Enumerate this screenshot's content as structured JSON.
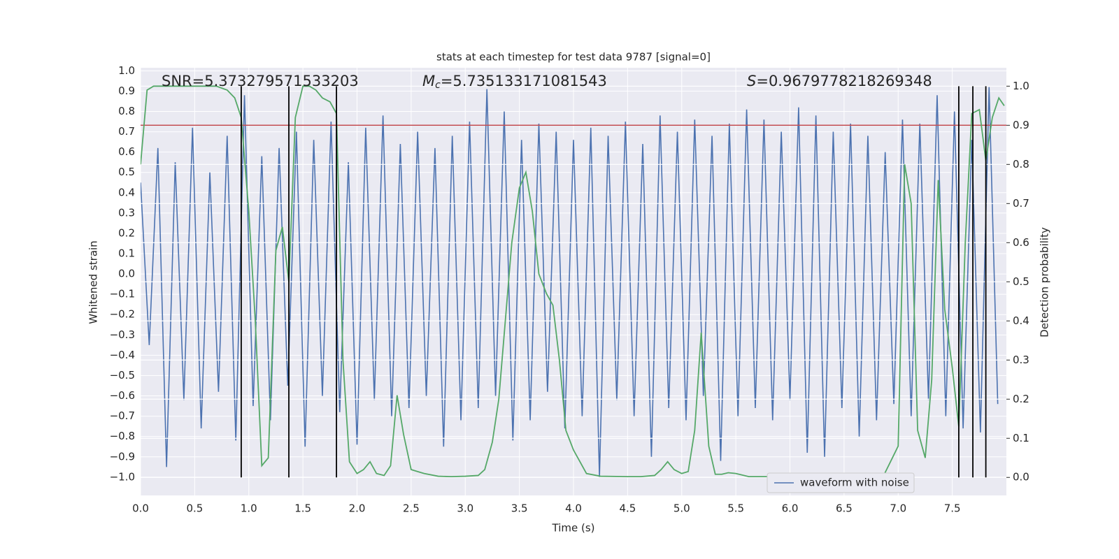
{
  "chart_data": {
    "type": "line",
    "title": "stats at each timestep for test data 9787 [signal=0]",
    "xlabel": "Time (s)",
    "ylabel": "Whitened strain",
    "y2label": "Detection probability",
    "xlim": [
      0,
      8
    ],
    "ylim": [
      -1.09,
      1.015
    ],
    "y2lim": [
      -0.046,
      1.047
    ],
    "xticks": [
      {
        "value": 0,
        "label": "0.0"
      },
      0.5,
      {
        "value": 1,
        "label": "1.0"
      },
      1.5,
      {
        "value": 2,
        "label": "2.0"
      },
      2.5,
      {
        "value": 3,
        "label": "3.0"
      },
      3.5,
      {
        "value": 4,
        "label": "4.0"
      },
      4.5,
      {
        "value": 5,
        "label": "5.0"
      },
      5.5,
      {
        "value": 6,
        "label": "6.0"
      },
      6.5,
      {
        "value": 7,
        "label": "7.0"
      },
      7.5
    ],
    "yticks": [
      {
        "value": 1,
        "label": "1.0"
      },
      0.9,
      0.8,
      0.7,
      0.6,
      0.5,
      0.4,
      0.3,
      0.2,
      0.1,
      {
        "value": 0,
        "label": "0.0"
      },
      {
        "value": -0.1,
        "label": "−0.1"
      },
      {
        "value": -0.2,
        "label": "−0.2"
      },
      {
        "value": -0.3,
        "label": "−0.3"
      },
      {
        "value": -0.4,
        "label": "−0.4"
      },
      {
        "value": -0.5,
        "label": "−0.5"
      },
      {
        "value": -0.6,
        "label": "−0.6"
      },
      {
        "value": -0.7,
        "label": "−0.7"
      },
      {
        "value": -0.8,
        "label": "−0.8"
      },
      {
        "value": -0.9,
        "label": "−0.9"
      },
      {
        "value": -1,
        "label": "−1.0"
      }
    ],
    "y2ticks": [
      {
        "value": 0,
        "label": "0.0"
      },
      0.1,
      0.2,
      0.3,
      0.4,
      0.5,
      0.6,
      0.7,
      0.8,
      0.9,
      {
        "value": 1,
        "label": "1.0"
      }
    ],
    "grid": true,
    "legend": "lower right",
    "annotations": [
      {
        "text": "SNR=5.373279571533203"
      },
      {
        "symbol": "M",
        "subscript": "c",
        "text": "=5.735133171081543"
      },
      {
        "symbol": "S",
        "text": "=0.9679778218269348"
      }
    ],
    "threshold": {
      "value": 0.9,
      "axis": "y2",
      "color": "#c44e52"
    },
    "vlines": {
      "x": [
        0.93,
        1.37,
        1.81,
        7.56,
        7.69,
        7.81
      ],
      "ymin": 0,
      "ymax": 1,
      "axis": "y2",
      "color": "#000000"
    },
    "series": [
      {
        "name": "waveform with noise",
        "color": "#4c72b0",
        "x": [
          0,
          0.08,
          0.16,
          0.24,
          0.32,
          0.4,
          0.48,
          0.56,
          0.64,
          0.72,
          0.8,
          0.88,
          0.96,
          1.04,
          1.12,
          1.2,
          1.28,
          1.36,
          1.44,
          1.52,
          1.6,
          1.68,
          1.76,
          1.84,
          1.92,
          2,
          2.08,
          2.16,
          2.24,
          2.32,
          2.4,
          2.48,
          2.56,
          2.64,
          2.72,
          2.8,
          2.88,
          2.96,
          3.04,
          3.12,
          3.2,
          3.28,
          3.36,
          3.44,
          3.52,
          3.6,
          3.68,
          3.76,
          3.84,
          3.92,
          4,
          4.08,
          4.16,
          4.24,
          4.32,
          4.4,
          4.48,
          4.56,
          4.64,
          4.72,
          4.8,
          4.88,
          4.96,
          5.04,
          5.12,
          5.2,
          5.28,
          5.36,
          5.44,
          5.52,
          5.6,
          5.68,
          5.76,
          5.84,
          5.92,
          6,
          6.08,
          6.16,
          6.24,
          6.32,
          6.4,
          6.48,
          6.56,
          6.64,
          6.72,
          6.8,
          6.88,
          6.96,
          7.04,
          7.12,
          7.2,
          7.28,
          7.36,
          7.44,
          7.52,
          7.6,
          7.68,
          7.76,
          7.84,
          7.92
        ],
        "values": [
          0.45,
          -0.35,
          0.62,
          -0.95,
          0.55,
          -0.62,
          0.72,
          -0.76,
          0.5,
          -0.58,
          0.68,
          -0.82,
          0.88,
          -0.65,
          0.58,
          -0.72,
          0.62,
          -0.55,
          0.7,
          -0.85,
          0.66,
          -0.6,
          0.75,
          -0.68,
          0.55,
          -0.84,
          0.72,
          -0.62,
          0.78,
          -0.7,
          0.64,
          -0.66,
          0.7,
          -0.6,
          0.62,
          -0.85,
          0.68,
          -0.72,
          0.75,
          -0.66,
          0.91,
          -0.6,
          0.8,
          -0.82,
          0.66,
          -0.72,
          0.74,
          -0.58,
          0.7,
          -0.76,
          0.66,
          -0.7,
          0.72,
          -1.0,
          0.68,
          -0.62,
          0.75,
          -0.7,
          0.64,
          -0.9,
          0.78,
          -0.66,
          0.7,
          -0.72,
          0.76,
          -0.6,
          0.68,
          -0.92,
          0.74,
          -0.7,
          0.81,
          -0.66,
          0.76,
          -0.72,
          0.7,
          -0.62,
          0.82,
          -0.88,
          0.78,
          -0.9,
          0.7,
          -0.66,
          0.74,
          -0.8,
          0.68,
          -0.72,
          0.6,
          -0.64,
          0.76,
          -0.7,
          0.74,
          -0.62,
          0.88,
          -0.7,
          0.8,
          -0.76,
          0.66,
          -0.78,
          0.92,
          -0.64
        ]
      },
      {
        "color": "#55a868",
        "axis": "y2",
        "x": [
          0,
          0.06,
          0.12,
          0.2,
          0.3,
          0.4,
          0.5,
          0.6,
          0.7,
          0.8,
          0.87,
          0.93,
          1.0,
          1.06,
          1.12,
          1.18,
          1.25,
          1.31,
          1.37,
          1.43,
          1.5,
          1.56,
          1.62,
          1.68,
          1.75,
          1.81,
          1.87,
          1.93,
          2.0,
          2.06,
          2.12,
          2.18,
          2.25,
          2.31,
          2.37,
          2.43,
          2.5,
          2.56,
          2.62,
          2.75,
          2.87,
          3.0,
          3.12,
          3.18,
          3.25,
          3.31,
          3.37,
          3.43,
          3.5,
          3.56,
          3.62,
          3.68,
          3.75,
          3.81,
          3.87,
          3.93,
          4.0,
          4.06,
          4.12,
          4.25,
          4.5,
          4.62,
          4.75,
          4.81,
          4.87,
          4.93,
          5.0,
          5.06,
          5.12,
          5.18,
          5.25,
          5.31,
          5.37,
          5.43,
          5.5,
          5.62,
          5.75,
          6.0,
          6.12,
          6.25,
          6.5,
          6.56,
          6.75,
          6.87,
          7.0,
          7.06,
          7.12,
          7.18,
          7.25,
          7.31,
          7.37,
          7.43,
          7.5,
          7.56,
          7.62,
          7.68,
          7.75,
          7.81,
          7.87,
          7.93,
          7.98
        ],
        "values": [
          0.8,
          0.99,
          1.0,
          1.0,
          1.0,
          1.0,
          1.0,
          1.0,
          1.0,
          0.99,
          0.97,
          0.92,
          0.68,
          0.4,
          0.03,
          0.05,
          0.58,
          0.64,
          0.5,
          0.92,
          1.0,
          1.0,
          0.99,
          0.97,
          0.96,
          0.93,
          0.3,
          0.04,
          0.01,
          0.02,
          0.04,
          0.01,
          0.005,
          0.03,
          0.21,
          0.11,
          0.02,
          0.015,
          0.01,
          0.003,
          0.002,
          0.003,
          0.005,
          0.02,
          0.09,
          0.2,
          0.4,
          0.6,
          0.74,
          0.78,
          0.68,
          0.52,
          0.47,
          0.44,
          0.3,
          0.12,
          0.07,
          0.04,
          0.01,
          0.003,
          0.002,
          0.002,
          0.005,
          0.02,
          0.04,
          0.02,
          0.01,
          0.015,
          0.12,
          0.37,
          0.08,
          0.008,
          0.008,
          0.012,
          0.01,
          0.002,
          0.002,
          0.002,
          0.01,
          0.007,
          0.01,
          0.005,
          0.008,
          0.007,
          0.08,
          0.8,
          0.7,
          0.12,
          0.05,
          0.25,
          0.76,
          0.43,
          0.28,
          0.13,
          0.6,
          0.93,
          0.94,
          0.81,
          0.92,
          0.97,
          0.95
        ]
      }
    ]
  }
}
